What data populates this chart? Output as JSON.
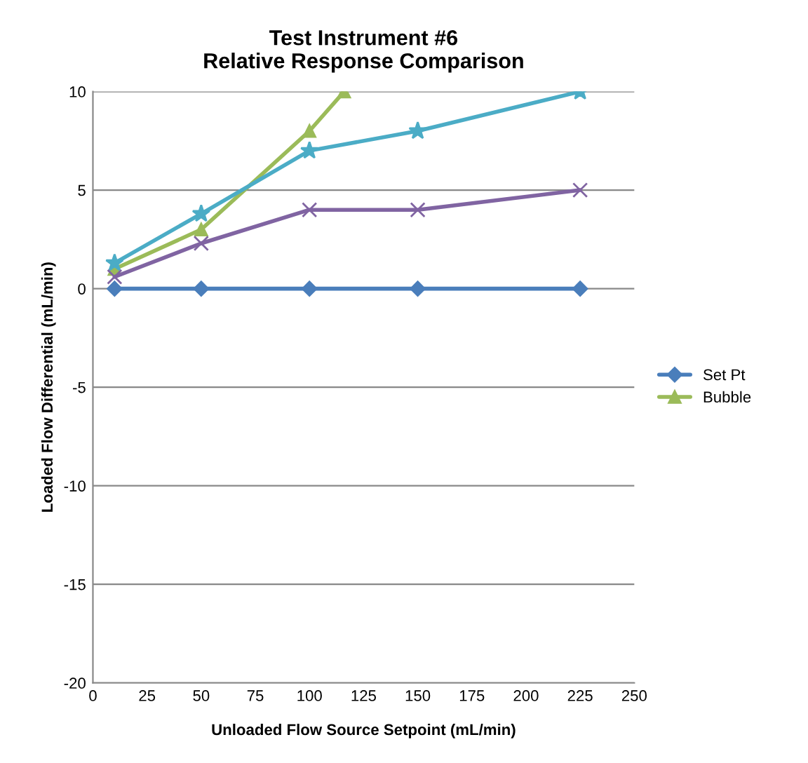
{
  "chart_data": {
    "type": "line",
    "title": "Test Instrument #6\nRelative Response Comparison",
    "xlabel": "Unloaded Flow Source Setpoint (mL/min)",
    "ylabel": "Loaded Flow Differential (mL/min)",
    "xlim": [
      0,
      250
    ],
    "xticks": [
      0,
      25,
      50,
      75,
      100,
      125,
      150,
      175,
      200,
      225,
      250
    ],
    "ylim": [
      -20,
      10
    ],
    "yticks": [
      -20,
      -15,
      -10,
      -5,
      0,
      5,
      10
    ],
    "grid": "y",
    "legend": "right",
    "series": [
      {
        "name": "Set Pt",
        "color": "#4a7ebb",
        "marker": "diamond",
        "x": [
          10,
          50,
          100,
          150,
          225
        ],
        "values": [
          0,
          0,
          0,
          0,
          0
        ]
      },
      {
        "name": "Bubble",
        "color": "#9bbb59",
        "marker": "triangle",
        "x": [
          10,
          50,
          100,
          116
        ],
        "values": [
          1.0,
          3,
          8,
          10
        ]
      },
      {
        "color": "#4bacc6",
        "marker": "star",
        "x": [
          10,
          50,
          100,
          150,
          225
        ],
        "values": [
          1.3,
          3.8,
          7,
          8,
          10
        ]
      },
      {
        "color": "#8064a2",
        "marker": "cross",
        "x": [
          10,
          50,
          100,
          150,
          225
        ],
        "values": [
          0.6,
          2.3,
          4,
          4,
          5
        ]
      }
    ]
  }
}
